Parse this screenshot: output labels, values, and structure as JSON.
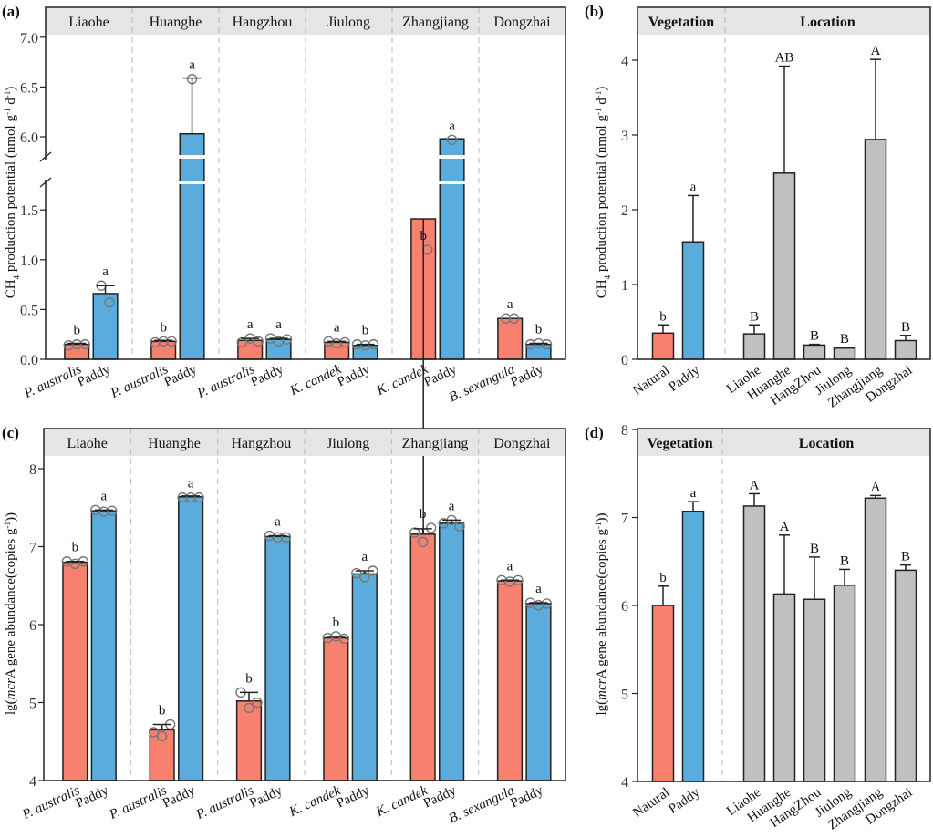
{
  "colors": {
    "natural": "#f8806f",
    "paddy": "#5aacdc",
    "location": "#c0c0c0",
    "strip": "#e5e5e5",
    "divider": "#b8b8b8",
    "point": "#777777"
  },
  "chart_data": [
    {
      "id": "a",
      "panel_label": "(a)",
      "type": "bar",
      "title": "",
      "ylabel": "CH4 production potential (nmol g-1 d-1)",
      "ylabel_parts": {
        "pre": "CH",
        "sub": "4",
        "mid": " production potential (nmol g",
        "sup1": "-1",
        "mid2": " d",
        "sup2": "-1",
        "post": ")"
      },
      "axis_break": [
        1.7,
        5.9
      ],
      "ylim_low": [
        0,
        1.7
      ],
      "ylim_high": [
        5.9,
        7.1
      ],
      "yticks": [
        "0.0",
        "0.5",
        "1.0",
        "1.5",
        "6.0",
        "6.5",
        "7.0"
      ],
      "ytick_values": [
        0,
        0.5,
        1.0,
        1.5,
        6.0,
        6.5,
        7.0
      ],
      "facets": [
        "Liaohe",
        "Huanghe",
        "Hangzhou",
        "Jiulong",
        "Zhangjiang",
        "Dongzhai"
      ],
      "groups": [
        {
          "facet": "Liaohe",
          "bars": [
            {
              "label": "P. australis",
              "italic": true,
              "kind": "natural",
              "value": 0.15,
              "err": 0.01,
              "sig": "b",
              "points": [
                0.14,
                0.15,
                0.15
              ]
            },
            {
              "label": "Paddy",
              "italic": false,
              "kind": "paddy",
              "value": 0.66,
              "err": 0.08,
              "sig": "a",
              "points": [
                0.74,
                0.57
              ]
            }
          ]
        },
        {
          "facet": "Huanghe",
          "bars": [
            {
              "label": "P. australis",
              "italic": true,
              "kind": "natural",
              "value": 0.18,
              "err": 0.01,
              "sig": "b",
              "points": [
                0.17,
                0.18,
                0.18
              ]
            },
            {
              "label": "Paddy",
              "italic": false,
              "kind": "paddy",
              "value": 6.03,
              "err": 0.56,
              "sig": "a",
              "points": [
                6.58
              ]
            }
          ]
        },
        {
          "facet": "Hangzhou",
          "bars": [
            {
              "label": "P. australis",
              "italic": true,
              "kind": "natural",
              "value": 0.19,
              "err": 0.02,
              "sig": "a",
              "points": [
                0.17,
                0.21,
                0.18
              ]
            },
            {
              "label": "Paddy",
              "italic": false,
              "kind": "paddy",
              "value": 0.2,
              "err": 0.01,
              "sig": "a",
              "points": [
                0.21,
                0.18,
                0.2
              ]
            }
          ]
        },
        {
          "facet": "Jiulong",
          "bars": [
            {
              "label": "K. candek",
              "italic": true,
              "kind": "natural",
              "value": 0.17,
              "err": 0.01,
              "sig": "a",
              "points": [
                0.18,
                0.16,
                0.17
              ]
            },
            {
              "label": "Paddy",
              "italic": false,
              "kind": "paddy",
              "value": 0.14,
              "err": 0.01,
              "sig": "b",
              "points": [
                0.15,
                0.14,
                0.15
              ]
            }
          ]
        },
        {
          "facet": "Zhangjiang",
          "bars": [
            {
              "label": "K. candek",
              "italic": true,
              "kind": "natural",
              "value": 1.41,
              "err": 0.33,
              "sig": "b",
              "points": [
                1.74,
                1.1
              ]
            },
            {
              "label": "Paddy",
              "italic": false,
              "kind": "paddy",
              "value": 5.98,
              "err": 0.0,
              "sig": "a",
              "points": [
                5.97
              ],
              "note": "bar truncated at break; top ~5.62"
            }
          ]
        },
        {
          "facet": "Dongzhai",
          "bars": [
            {
              "label": "B. sexangula",
              "italic": true,
              "kind": "natural",
              "value": 0.41,
              "err": 0.0,
              "sig": "a",
              "points": [
                0.41,
                0.41
              ]
            },
            {
              "label": "Paddy",
              "italic": false,
              "kind": "paddy",
              "value": 0.15,
              "err": 0.01,
              "sig": "b",
              "points": [
                0.15,
                0.16,
                0.15
              ]
            }
          ]
        }
      ]
    },
    {
      "id": "b",
      "panel_label": "(b)",
      "type": "bar",
      "ylabel": "CH4 production potential (nmol g-1 d-1)",
      "ylabel_parts": {
        "pre": "CH",
        "sub": "4",
        "mid": " production potential (nmol g",
        "sup1": "-1",
        "mid2": " d",
        "sup2": "-1",
        "post": ")"
      },
      "ylim": [
        0,
        4.4
      ],
      "yticks": [
        "0",
        "1",
        "2",
        "3",
        "4"
      ],
      "ytick_values": [
        0,
        1,
        2,
        3,
        4
      ],
      "strips": [
        "Vegetation",
        "Location"
      ],
      "bars": [
        {
          "label": "Natural",
          "kind": "natural",
          "value": 0.35,
          "err": 0.11,
          "sig": "b"
        },
        {
          "label": "Paddy",
          "kind": "paddy",
          "value": 1.57,
          "err": 0.62,
          "sig": "a"
        },
        {
          "label": "Liaohe",
          "kind": "location",
          "value": 0.34,
          "err": 0.12,
          "sig": "B"
        },
        {
          "label": "Huanghe",
          "kind": "location",
          "value": 2.49,
          "err": 1.43,
          "sig": "AB"
        },
        {
          "label": "HangZhou",
          "kind": "location",
          "value": 0.19,
          "err": 0.01,
          "sig": "B"
        },
        {
          "label": "Jiulong",
          "kind": "location",
          "value": 0.15,
          "err": 0.01,
          "sig": "B"
        },
        {
          "label": "Zhangjiang",
          "kind": "location",
          "value": 2.94,
          "err": 1.07,
          "sig": "A"
        },
        {
          "label": "Dongzhai",
          "kind": "location",
          "value": 0.25,
          "err": 0.07,
          "sig": "B"
        }
      ]
    },
    {
      "id": "c",
      "panel_label": "(c)",
      "type": "bar",
      "ylabel": "lg(mcrA gene abundance(copies g-1))",
      "ylabel_parts": {
        "pre": "lg(",
        "ital": "mcr",
        "mid": "A gene abundance(copies g",
        "sup1": "-1",
        "post": "))"
      },
      "ylim": [
        4,
        8.5
      ],
      "yticks": [
        "4",
        "5",
        "6",
        "7",
        "8"
      ],
      "ytick_values": [
        4,
        5,
        6,
        7,
        8
      ],
      "facets": [
        "Liaohe",
        "Huanghe",
        "Hangzhou",
        "Jiulong",
        "Zhangjiang",
        "Dongzhai"
      ],
      "groups": [
        {
          "facet": "Liaohe",
          "bars": [
            {
              "label": "P. australis",
              "italic": true,
              "kind": "natural",
              "value": 6.8,
              "err": 0.01,
              "sig": "b",
              "points": [
                6.81,
                6.78,
                6.81
              ]
            },
            {
              "label": "Paddy",
              "italic": false,
              "kind": "paddy",
              "value": 7.46,
              "err": 0.01,
              "sig": "a",
              "points": [
                7.47,
                7.45,
                7.46
              ]
            }
          ]
        },
        {
          "facet": "Huanghe",
          "bars": [
            {
              "label": "P. australis",
              "italic": true,
              "kind": "natural",
              "value": 4.65,
              "err": 0.07,
              "sig": "b",
              "points": [
                4.62,
                4.57,
                4.72
              ]
            },
            {
              "label": "Paddy",
              "italic": false,
              "kind": "paddy",
              "value": 7.64,
              "err": 0.01,
              "sig": "a",
              "points": [
                7.63,
                7.63,
                7.63
              ]
            }
          ]
        },
        {
          "facet": "Hangzhou",
          "bars": [
            {
              "label": "P. australis",
              "italic": true,
              "kind": "natural",
              "value": 5.02,
              "err": 0.11,
              "sig": "b",
              "points": [
                5.13,
                4.93,
                5.0
              ]
            },
            {
              "label": "Paddy",
              "italic": false,
              "kind": "paddy",
              "value": 7.13,
              "err": 0.01,
              "sig": "a",
              "points": [
                7.14,
                7.12,
                7.12
              ]
            }
          ]
        },
        {
          "facet": "Jiulong",
          "bars": [
            {
              "label": "K. candek",
              "italic": true,
              "kind": "natural",
              "value": 5.83,
              "err": 0.02,
              "sig": "b",
              "points": [
                5.83,
                5.85,
                5.82
              ]
            },
            {
              "label": "Paddy",
              "italic": false,
              "kind": "paddy",
              "value": 6.65,
              "err": 0.04,
              "sig": "a",
              "points": [
                6.66,
                6.61,
                6.69
              ]
            }
          ]
        },
        {
          "facet": "Zhangjiang",
          "bars": [
            {
              "label": "K. candek",
              "italic": true,
              "kind": "natural",
              "value": 7.16,
              "err": 0.07,
              "sig": "b",
              "points": [
                7.18,
                7.06,
                7.24
              ]
            },
            {
              "label": "Paddy",
              "italic": false,
              "kind": "paddy",
              "value": 7.3,
              "err": 0.04,
              "sig": "a",
              "points": [
                7.3,
                7.34,
                7.26
              ]
            }
          ]
        },
        {
          "facet": "Dongzhai",
          "bars": [
            {
              "label": "B. sexangula",
              "italic": true,
              "kind": "natural",
              "value": 6.56,
              "err": 0.01,
              "sig": "a",
              "points": [
                6.57,
                6.55,
                6.57
              ]
            },
            {
              "label": "Paddy",
              "italic": false,
              "kind": "paddy",
              "value": 6.27,
              "err": 0.01,
              "sig": "a",
              "points": [
                6.28,
                6.25,
                6.27
              ]
            }
          ]
        }
      ]
    },
    {
      "id": "d",
      "panel_label": "(d)",
      "type": "bar",
      "ylabel": "lg(mcrA gene abundance(copies g-1))",
      "ylabel_parts": {
        "pre": "lg(",
        "ital": "mcr",
        "mid": "A gene abundance(copies g",
        "sup1": "-1",
        "post": "))"
      },
      "ylim": [
        4,
        8
      ],
      "yticks": [
        "4",
        "5",
        "6",
        "7",
        "8"
      ],
      "ytick_values": [
        4,
        5,
        6,
        7,
        8
      ],
      "strips": [
        "Vegetation",
        "Location"
      ],
      "bars": [
        {
          "label": "Natural",
          "kind": "natural",
          "value": 6.0,
          "err": 0.22,
          "sig": "b"
        },
        {
          "label": "Paddy",
          "kind": "paddy",
          "value": 7.07,
          "err": 0.11,
          "sig": "a"
        },
        {
          "label": "Liaohe",
          "kind": "location",
          "value": 7.13,
          "err": 0.14,
          "sig": "A"
        },
        {
          "label": "Huanghe",
          "kind": "location",
          "value": 6.13,
          "err": 0.67,
          "sig": "A"
        },
        {
          "label": "HangZhou",
          "kind": "location",
          "value": 6.07,
          "err": 0.48,
          "sig": "B"
        },
        {
          "label": "Jiulong",
          "kind": "location",
          "value": 6.23,
          "err": 0.18,
          "sig": "B"
        },
        {
          "label": "Zhangjiang",
          "kind": "location",
          "value": 7.22,
          "err": 0.03,
          "sig": "A"
        },
        {
          "label": "Dongzhai",
          "kind": "location",
          "value": 6.4,
          "err": 0.06,
          "sig": "B"
        }
      ]
    }
  ]
}
